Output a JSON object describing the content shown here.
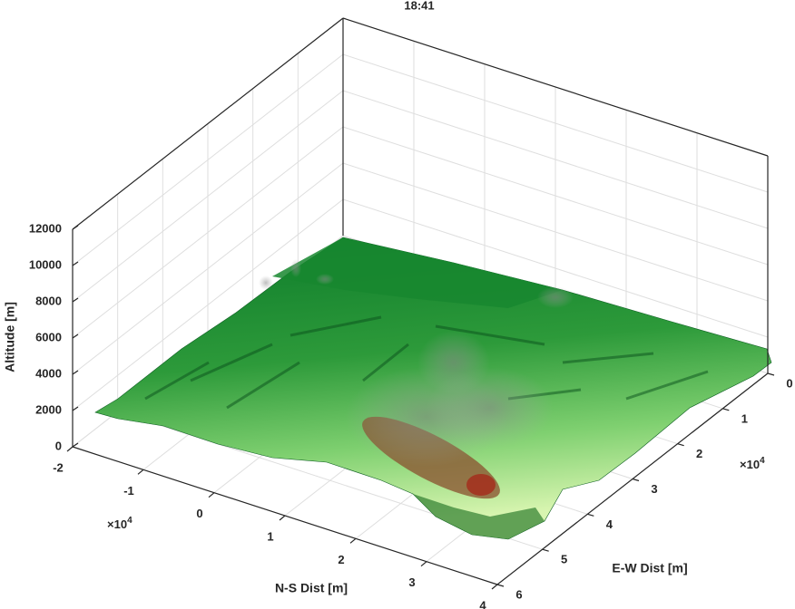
{
  "chart_data": {
    "type": "surface3d",
    "title": "18:41",
    "xlabel": "N-S Dist [m]",
    "ylabel": "E-W Dist [m]",
    "zlabel": "Altitude [m]",
    "xlim": [
      -2,
      4
    ],
    "xticks": [
      -2,
      -1,
      0,
      1,
      2,
      3,
      4
    ],
    "x_multiplier": "×10",
    "x_exponent": "4",
    "ylim": [
      0,
      6
    ],
    "yticks": [
      0,
      1,
      2,
      3,
      4,
      5,
      6
    ],
    "y_multiplier": "×10",
    "y_exponent": "4",
    "zlim": [
      0,
      12000
    ],
    "zticks": [
      0,
      2000,
      4000,
      6000,
      8000,
      10000,
      12000
    ],
    "grid": true
  }
}
